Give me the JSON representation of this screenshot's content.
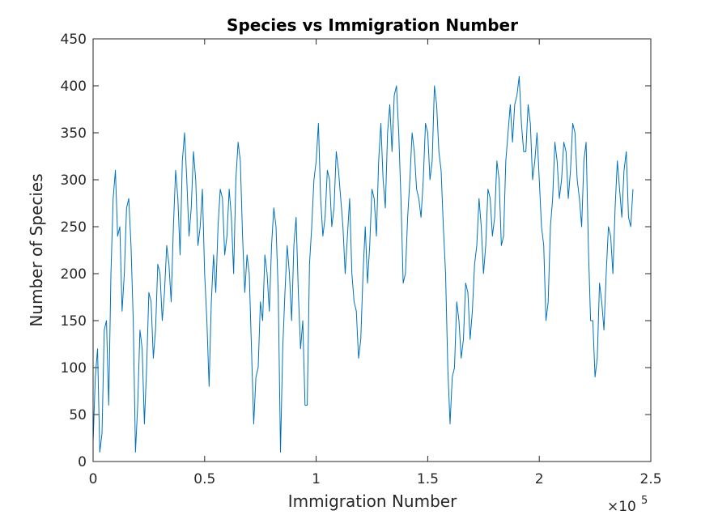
{
  "chart_data": {
    "type": "line",
    "title": "Species vs Immigration Number",
    "x_label": "Immigration Number",
    "y_label": "Number of Species",
    "x_exponent_label": {
      "base": "×10",
      "exponent": "5"
    },
    "xlim": [
      0,
      250000
    ],
    "ylim": [
      0,
      450
    ],
    "xticks": [
      0,
      {
        "value": 50000,
        "label": "0.5"
      },
      {
        "value": 100000,
        "label": "1"
      },
      {
        "value": 150000,
        "label": "1.5"
      },
      {
        "value": 200000,
        "label": "2"
      },
      {
        "value": 250000,
        "label": "2.5"
      }
    ],
    "yticks": [
      0,
      50,
      100,
      150,
      200,
      250,
      300,
      350,
      400,
      450
    ],
    "grid": false,
    "x": [
      0,
      1000,
      2000,
      3000,
      4000,
      5000,
      6000,
      7000,
      8000,
      9000,
      10000,
      11000,
      12000,
      13000,
      14000,
      15000,
      16000,
      17000,
      18000,
      19000,
      20000,
      21000,
      22000,
      23000,
      24000,
      25000,
      26000,
      27000,
      28000,
      29000,
      30000,
      31000,
      32000,
      33000,
      34000,
      35000,
      36000,
      37000,
      38000,
      39000,
      40000,
      41000,
      42000,
      43000,
      44000,
      45000,
      46000,
      47000,
      48000,
      49000,
      50000,
      51000,
      52000,
      53000,
      54000,
      55000,
      56000,
      57000,
      58000,
      59000,
      60000,
      61000,
      62000,
      63000,
      64000,
      65000,
      66000,
      67000,
      68000,
      69000,
      70000,
      71000,
      72000,
      73000,
      74000,
      75000,
      76000,
      77000,
      78000,
      79000,
      80000,
      81000,
      82000,
      83000,
      84000,
      85000,
      86000,
      87000,
      88000,
      89000,
      90000,
      91000,
      92000,
      93000,
      94000,
      95000,
      96000,
      97000,
      98000,
      99000,
      100000,
      101000,
      102000,
      103000,
      104000,
      105000,
      106000,
      107000,
      108000,
      109000,
      110000,
      111000,
      112000,
      113000,
      114000,
      115000,
      116000,
      117000,
      118000,
      119000,
      120000,
      121000,
      122000,
      123000,
      124000,
      125000,
      126000,
      127000,
      128000,
      129000,
      130000,
      131000,
      132000,
      133000,
      134000,
      135000,
      136000,
      137000,
      138000,
      139000,
      140000,
      141000,
      142000,
      143000,
      144000,
      145000,
      146000,
      147000,
      148000,
      149000,
      150000,
      151000,
      152000,
      153000,
      154000,
      155000,
      156000,
      157000,
      158000,
      159000,
      160000,
      161000,
      162000,
      163000,
      164000,
      165000,
      166000,
      167000,
      168000,
      169000,
      170000,
      171000,
      172000,
      173000,
      174000,
      175000,
      176000,
      177000,
      178000,
      179000,
      180000,
      181000,
      182000,
      183000,
      184000,
      185000,
      186000,
      187000,
      188000,
      189000,
      190000,
      191000,
      192000,
      193000,
      194000,
      195000,
      196000,
      197000,
      198000,
      199000,
      200000,
      201000,
      202000,
      203000,
      204000,
      205000,
      206000,
      207000,
      208000,
      209000,
      210000,
      211000,
      212000,
      213000,
      214000,
      215000,
      216000,
      217000,
      218000,
      219000,
      220000,
      221000,
      222000,
      223000,
      224000,
      225000,
      226000,
      227000,
      228000,
      229000,
      230000,
      231000,
      232000,
      233000,
      234000,
      235000,
      236000,
      237000,
      238000,
      239000,
      240000,
      241000,
      242000
    ],
    "series": [
      {
        "color": "#0072bd",
        "values": [
          20,
          90,
          120,
          10,
          30,
          140,
          150,
          60,
          200,
          280,
          310,
          240,
          250,
          160,
          200,
          270,
          280,
          230,
          150,
          10,
          60,
          140,
          120,
          40,
          100,
          180,
          170,
          110,
          140,
          210,
          200,
          150,
          180,
          230,
          210,
          170,
          250,
          310,
          280,
          220,
          320,
          350,
          300,
          240,
          270,
          330,
          300,
          230,
          250,
          290,
          200,
          150,
          80,
          170,
          220,
          180,
          250,
          290,
          280,
          220,
          240,
          290,
          260,
          200,
          300,
          340,
          320,
          240,
          180,
          220,
          200,
          120,
          40,
          90,
          100,
          170,
          150,
          220,
          200,
          160,
          230,
          270,
          250,
          180,
          10,
          120,
          180,
          230,
          200,
          150,
          230,
          260,
          180,
          120,
          150,
          60,
          60,
          210,
          250,
          300,
          320,
          360,
          280,
          240,
          260,
          310,
          300,
          250,
          270,
          330,
          310,
          280,
          250,
          200,
          240,
          280,
          200,
          170,
          160,
          110,
          130,
          200,
          250,
          190,
          230,
          290,
          280,
          240,
          320,
          360,
          300,
          270,
          350,
          380,
          330,
          390,
          400,
          350,
          280,
          190,
          200,
          260,
          300,
          350,
          330,
          290,
          280,
          260,
          300,
          360,
          350,
          300,
          320,
          400,
          380,
          330,
          310,
          250,
          200,
          100,
          40,
          90,
          100,
          170,
          150,
          110,
          130,
          190,
          180,
          130,
          160,
          210,
          230,
          280,
          250,
          200,
          230,
          290,
          280,
          240,
          260,
          320,
          300,
          230,
          240,
          320,
          350,
          380,
          340,
          380,
          390,
          410,
          360,
          330,
          330,
          380,
          360,
          300,
          320,
          350,
          300,
          250,
          230,
          150,
          170,
          250,
          280,
          340,
          320,
          280,
          300,
          340,
          330,
          280,
          310,
          360,
          350,
          300,
          280,
          250,
          320,
          340,
          230,
          150,
          150,
          90,
          110,
          190,
          170,
          140,
          200,
          250,
          240,
          200,
          270,
          320,
          290,
          260,
          310,
          330,
          260,
          250,
          290
        ]
      }
    ]
  }
}
